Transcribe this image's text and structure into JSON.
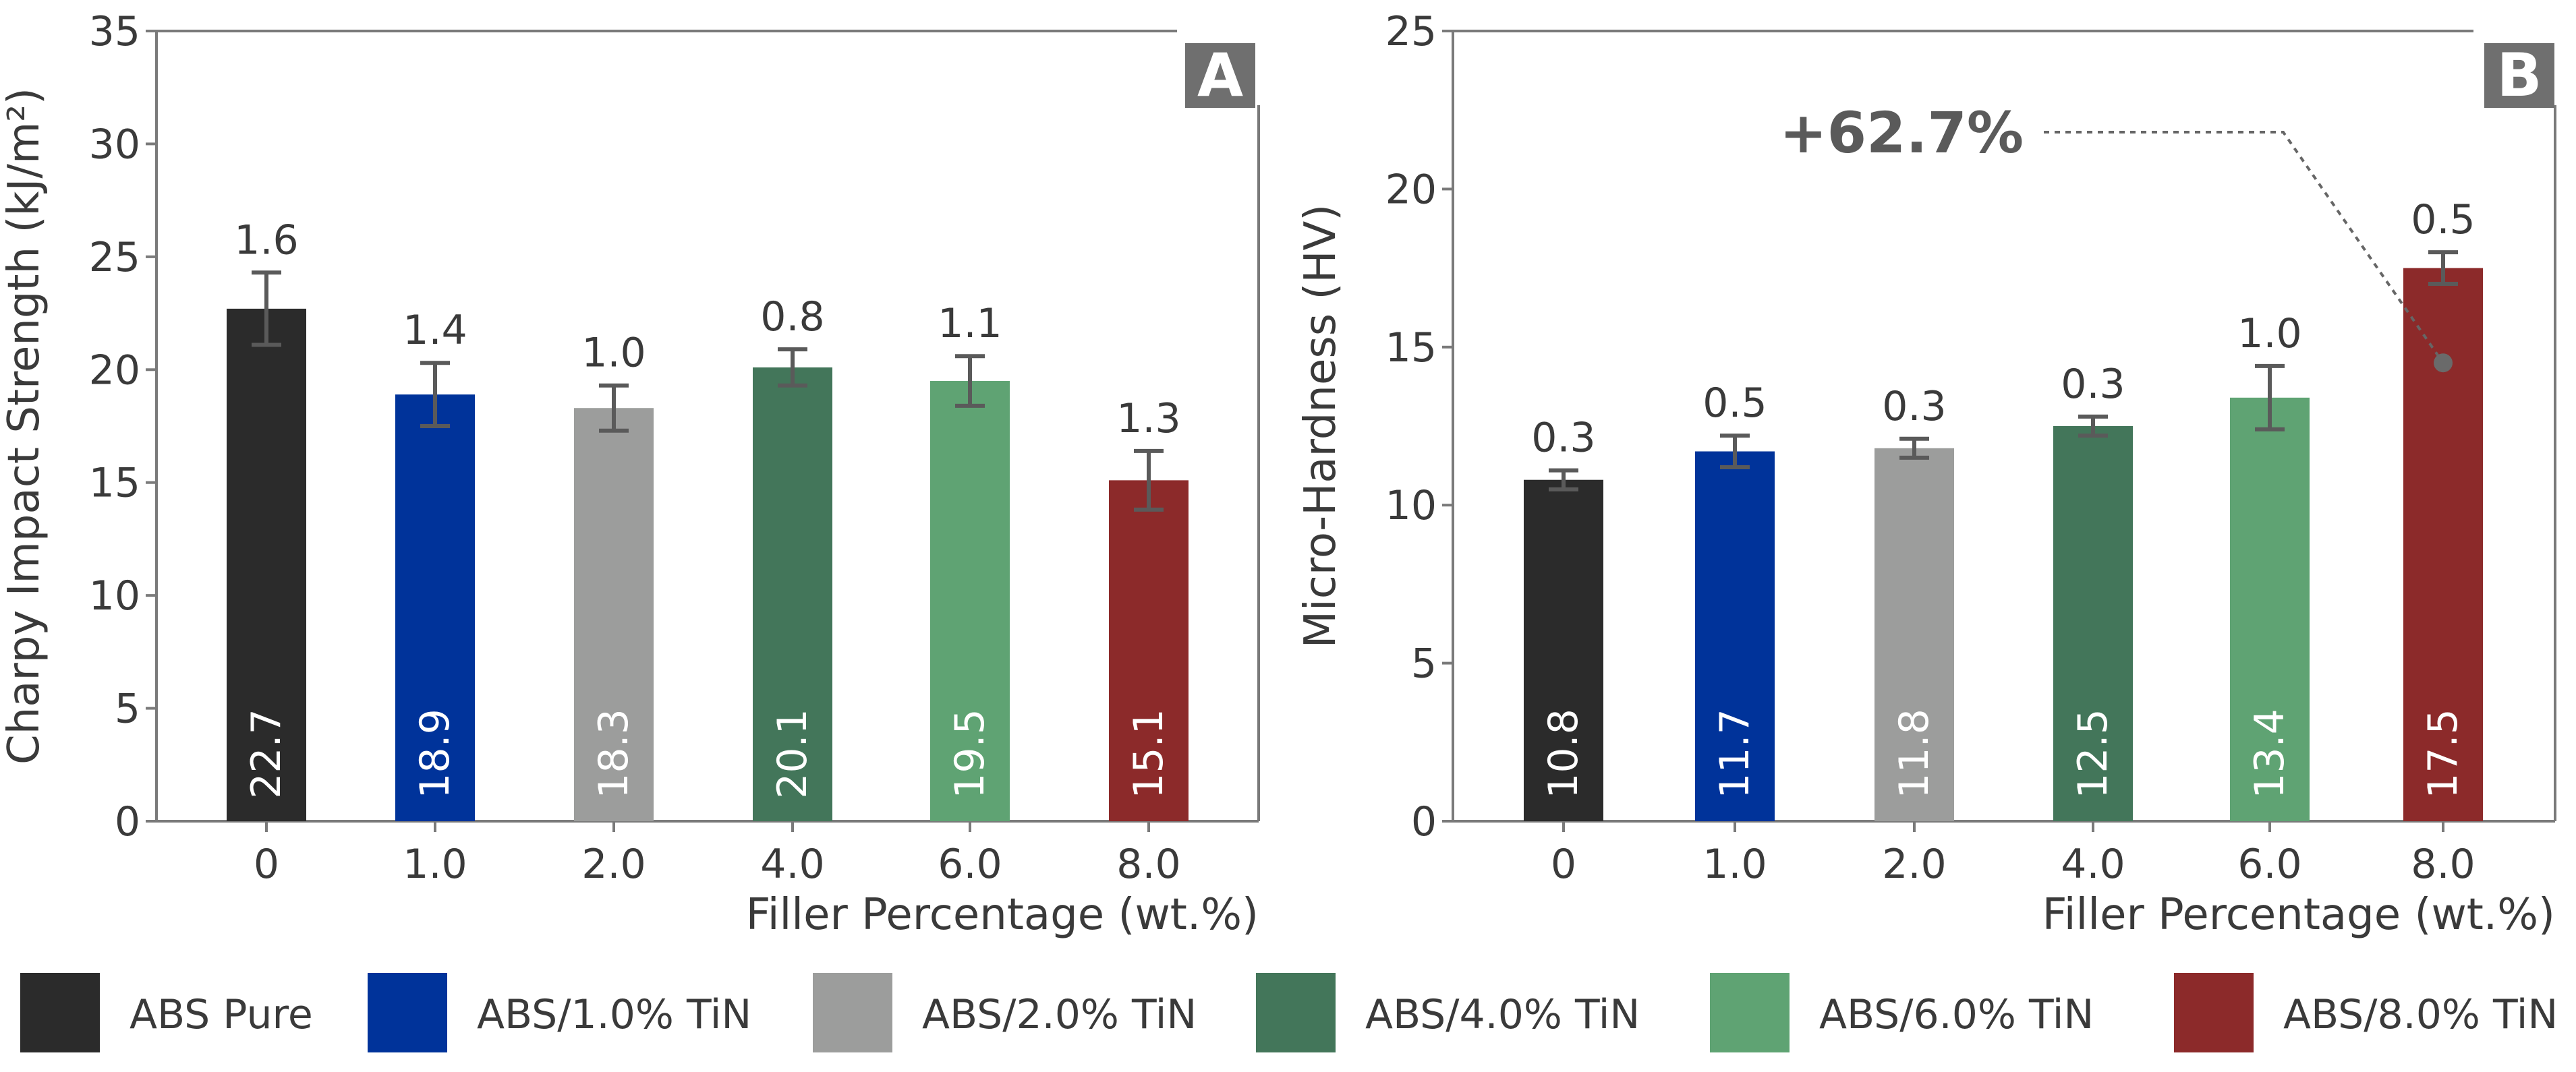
{
  "legend": [
    {
      "label": "ABS Pure",
      "color": "#2b2b2b"
    },
    {
      "label": "ABS/1.0% TiN",
      "color": "#00339a"
    },
    {
      "label": "ABS/2.0% TiN",
      "color": "#9c9d9c"
    },
    {
      "label": "ABS/4.0% TiN",
      "color": "#43765a"
    },
    {
      "label": "ABS/6.0% TiN",
      "color": "#5fa373"
    },
    {
      "label": "ABS/8.0% TiN",
      "color": "#8c2a2a"
    }
  ],
  "chart_data": [
    {
      "type": "bar",
      "panel": "A",
      "categories": [
        "0",
        "1.0",
        "2.0",
        "4.0",
        "6.0",
        "8.0"
      ],
      "values": [
        22.7,
        18.9,
        18.3,
        20.1,
        19.5,
        15.1
      ],
      "value_labels": [
        "22.7",
        "18.9",
        "18.3",
        "20.1",
        "19.5",
        "15.1"
      ],
      "errors": [
        1.6,
        1.4,
        1.0,
        0.8,
        1.1,
        1.3
      ],
      "error_labels": [
        "1.6",
        "1.4",
        "1.0",
        "0.8",
        "1.1",
        "1.3"
      ],
      "xlabel": "Filler Percentage (wt.%)",
      "ylabel": "Charpy Impact Strength (kJ/m²)",
      "ylim": [
        0,
        35
      ],
      "yticks": [
        0,
        5,
        10,
        15,
        20,
        25,
        30,
        35
      ],
      "grid": false
    },
    {
      "type": "bar",
      "panel": "B",
      "categories": [
        "0",
        "1.0",
        "2.0",
        "4.0",
        "6.0",
        "8.0"
      ],
      "values": [
        10.8,
        11.7,
        11.8,
        12.5,
        13.4,
        17.5
      ],
      "value_labels": [
        "10.8",
        "11.7",
        "11.8",
        "12.5",
        "13.4",
        "17.5"
      ],
      "errors": [
        0.3,
        0.5,
        0.3,
        0.3,
        1.0,
        0.5
      ],
      "error_labels": [
        "0.3",
        "0.5",
        "0.3",
        "0.3",
        "1.0",
        "0.5"
      ],
      "xlabel": "Filler Percentage (wt.%)",
      "ylabel": "Micro-Hardness (HV)",
      "ylim": [
        0,
        25
      ],
      "yticks": [
        0,
        5,
        10,
        15,
        20,
        25
      ],
      "grid": false,
      "annotation": {
        "text": "+62.7%",
        "point": {
          "category": "8.0",
          "y": 14.5
        }
      }
    }
  ]
}
